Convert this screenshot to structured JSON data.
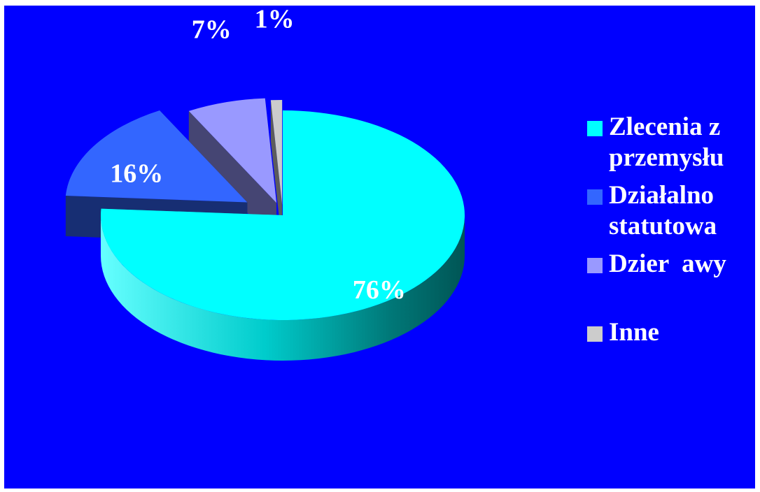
{
  "chart_data": {
    "type": "pie",
    "three_d": true,
    "exploded": true,
    "categories": [
      "Zlecenia z przemysłu",
      "Działalno statutowa",
      "Dzier  awy",
      "Inne"
    ],
    "values": [
      76,
      16,
      7,
      1
    ],
    "data_labels": [
      "76%",
      "16%",
      "7%",
      "1%"
    ],
    "colors": [
      "#00ffff",
      "#3366ff",
      "#9999ff",
      "#cccccc"
    ],
    "background": "#0000ff",
    "legend_position": "right",
    "legend": [
      {
        "label": "Zlecenia z\nprzemysłu",
        "color": "#00ffff"
      },
      {
        "label": "Działalno\nstatutowa",
        "color": "#3366ff"
      },
      {
        "label": "Dzier  awy",
        "color": "#9999ff"
      },
      {
        "label": "Inne",
        "color": "#cccccc"
      }
    ]
  }
}
